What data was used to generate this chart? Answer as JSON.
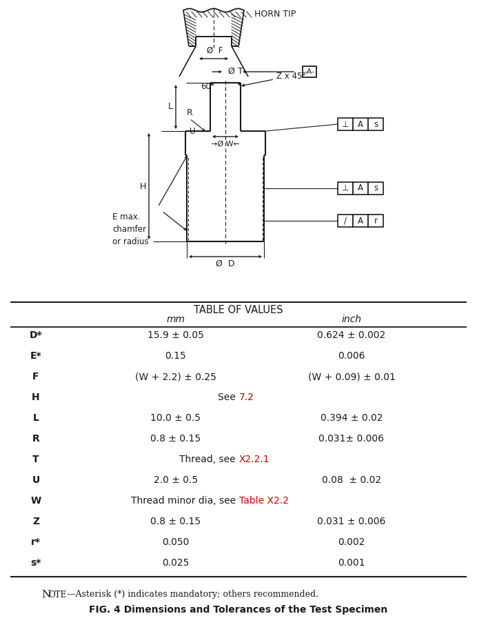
{
  "title": "FIG. 4 Dimensions and Tolerances of the Test Specimen",
  "note_prefix": "NOTE",
  "note_suffix": "—Asterisk (*) indicates mandatory; others recommended.",
  "table_title": "TABLE OF VALUES",
  "col_mm": "mm",
  "col_inch": "inch",
  "rows": [
    {
      "label": "D*",
      "mm": "15.9 ± 0.05",
      "inch": "0.624 ± 0.002",
      "span": false,
      "red_part": ""
    },
    {
      "label": "E*",
      "mm": "0.15",
      "inch": "0.006",
      "span": false,
      "red_part": ""
    },
    {
      "label": "F",
      "mm": "(W + 2.2) ± 0.25",
      "inch": "(W + 0.09) ± 0.01",
      "span": false,
      "red_part": ""
    },
    {
      "label": "H",
      "mm": "See ",
      "inch": "7.2",
      "span": true,
      "red_part": "7.2"
    },
    {
      "label": "L",
      "mm": "10.0 ± 0.5",
      "inch": "0.394 ± 0.02",
      "span": false,
      "red_part": ""
    },
    {
      "label": "R",
      "mm": "0.8 ± 0.15",
      "inch": "0.031± 0.006",
      "span": false,
      "red_part": ""
    },
    {
      "label": "T",
      "mm": "Thread, see ",
      "inch": "X2.2.1",
      "span": true,
      "red_part": "X2.2.1"
    },
    {
      "label": "U",
      "mm": "2.0 ± 0.5",
      "inch": "0.08  ± 0.02",
      "span": false,
      "red_part": ""
    },
    {
      "label": "W",
      "mm": "Thread minor dia, see ",
      "inch": "Table X2.2",
      "span": true,
      "red_part": "Table X2.2"
    },
    {
      "label": "Z",
      "mm": "0.8 ± 0.15",
      "inch": "0.031 ± 0.006",
      "span": false,
      "red_part": ""
    },
    {
      "label": "r*",
      "mm": "0.050",
      "inch": "0.002",
      "span": false,
      "red_part": ""
    },
    {
      "label": "s*",
      "mm": "0.025",
      "inch": "0.001",
      "span": false,
      "red_part": ""
    }
  ],
  "dc": "#1a1a1a",
  "red": "#cc0000",
  "white": "#ffffff",
  "bg": "#f5f5f5"
}
